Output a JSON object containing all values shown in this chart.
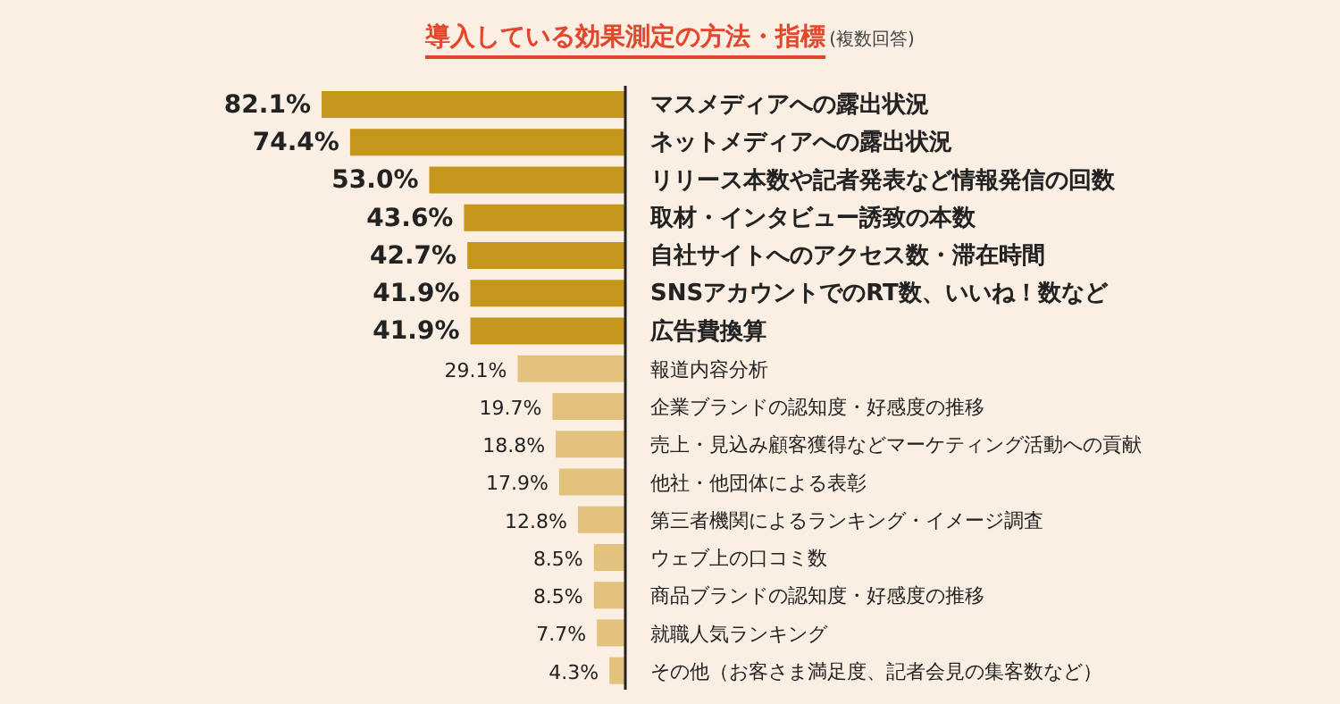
{
  "chart_data": {
    "type": "bar",
    "orientation": "horizontal",
    "title": "導入している効果測定の方法・指標",
    "subtitle": "(複数回答)",
    "categories": [
      "マスメディアへの露出状況",
      "ネットメディアへの露出状況",
      "リリース本数や記者発表など情報発信の回数",
      "取材・インタビュー誘致の本数",
      "自社サイトへのアクセス数・滞在時間",
      "SNSアカウントでのRT数、いいね！数など",
      "広告費換算",
      "報道内容分析",
      "企業ブランドの認知度・好感度の推移",
      "売上・見込み顧客獲得などマーケティング活動への貢献",
      "他社・他団体による表彰",
      "第三者機関によるランキング・イメージ調査",
      "ウェブ上の口コミ数",
      "商品ブランドの認知度・好感度の推移",
      "就職人気ランキング",
      "その他（お客さま満足度、記者会見の集客数など）"
    ],
    "values": [
      82.1,
      74.4,
      53.0,
      43.6,
      42.7,
      41.9,
      41.9,
      29.1,
      19.7,
      18.8,
      17.9,
      12.8,
      8.5,
      8.5,
      7.7,
      4.3
    ],
    "value_labels": [
      "82.1%",
      "74.4%",
      "53.0%",
      "43.6%",
      "42.7%",
      "41.9%",
      "41.9%",
      "29.1%",
      "19.7%",
      "18.8%",
      "17.9%",
      "12.8%",
      "8.5%",
      "8.5%",
      "7.7%",
      "4.3%"
    ],
    "colors": [
      "#c4961c",
      "#c4961c",
      "#c4961c",
      "#c4961c",
      "#c4961c",
      "#c4961c",
      "#c4961c",
      "#e2c27c",
      "#e2c27c",
      "#e2c27c",
      "#e2c27c",
      "#e2c27c",
      "#e2c27c",
      "#e2c27c",
      "#e2c27c",
      "#e2c27c"
    ]
  }
}
